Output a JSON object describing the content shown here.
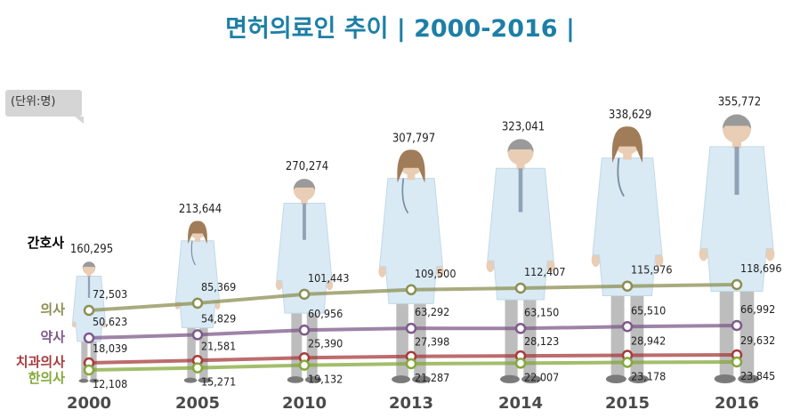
{
  "chart_data": {
    "type": "line",
    "title": "면허의료인 추이  | 2000-2016 |",
    "unit_label": "(단위:명)",
    "categories": [
      "2000",
      "2005",
      "2010",
      "2013",
      "2014",
      "2015",
      "2016"
    ],
    "series": [
      {
        "name": "간호사",
        "color": "#000000",
        "values": [
          160295,
          213644,
          270274,
          307797,
          323041,
          338629,
          355772
        ]
      },
      {
        "name": "의사",
        "color": "#8c8f53",
        "values": [
          72503,
          85369,
          101443,
          109500,
          112407,
          115976,
          118696
        ]
      },
      {
        "name": "약사",
        "color": "#7e5a8a",
        "values": [
          50623,
          54829,
          60956,
          63292,
          63150,
          65510,
          66992
        ]
      },
      {
        "name": "치과의사",
        "color": "#a73b3b",
        "values": [
          18039,
          21581,
          25390,
          27398,
          28123,
          28942,
          29632
        ]
      },
      {
        "name": "한의사",
        "color": "#84a83a",
        "values": [
          12108,
          15271,
          19132,
          21287,
          22007,
          23178,
          23845
        ]
      }
    ],
    "value_labels": {
      "간호사": [
        "160,295",
        "213,644",
        "270,274",
        "307,797",
        "323,041",
        "338,629",
        "355,772"
      ],
      "의사": [
        "72,503",
        "85,369",
        "101,443",
        "109,500",
        "112,407",
        "115,976",
        "118,696"
      ],
      "약사": [
        "50,623",
        "54,829",
        "60,956",
        "63,292",
        "63,150",
        "65,510",
        "66,992"
      ],
      "치과의사": [
        "18,039",
        "21,581",
        "25,390",
        "27,398",
        "28,123",
        "28,942",
        "29,632"
      ],
      "한의사": [
        "12,108",
        "15,271",
        "19,132",
        "21,287",
        "22,007",
        "23,178",
        "23,845"
      ]
    },
    "colors": {
      "title": "#1d7fa6",
      "coat": "#d9eaf4",
      "skin": "#e9cdb4",
      "hair_male": "#9a9a9a",
      "hair_female": "#a07c58",
      "pants": "#bdbdbd"
    }
  }
}
